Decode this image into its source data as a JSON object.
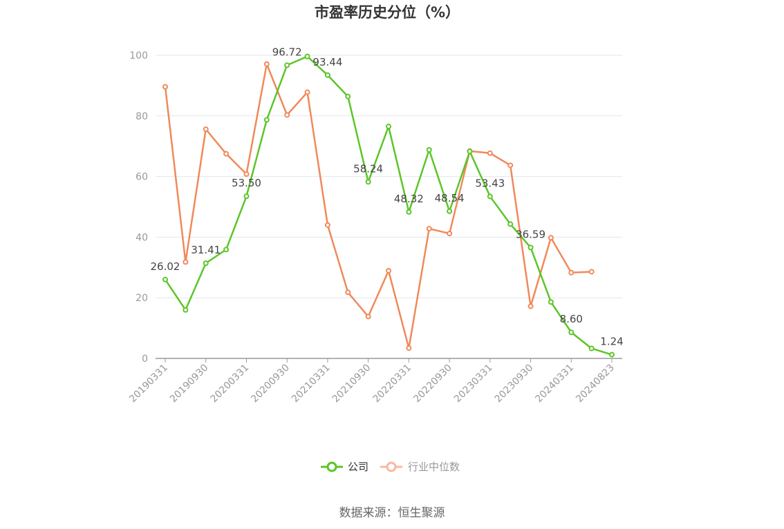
{
  "chart_data": {
    "type": "line",
    "title": "市盈率历史分位（%）",
    "ylim": [
      0,
      100
    ],
    "yticks": [
      0,
      20,
      40,
      60,
      80,
      100
    ],
    "x": [
      "20190331",
      "20190630",
      "20190930",
      "20191231",
      "20200331",
      "20200630",
      "20200930",
      "20201231",
      "20210331",
      "20210630",
      "20210930",
      "20211231",
      "20220331",
      "20220630",
      "20220930",
      "20221231",
      "20230331",
      "20230630",
      "20230930",
      "20231231",
      "20240331",
      "20240630",
      "20240823"
    ],
    "xtick_labels": [
      "20190331",
      "20190930",
      "20200331",
      "20200930",
      "20210331",
      "20210930",
      "20220331",
      "20220930",
      "20230331",
      "20230930",
      "20240331",
      "20240823"
    ],
    "grid": true,
    "legend_position": "bottom",
    "series": [
      {
        "name": "公司",
        "color": "#5cc527",
        "values": [
          26.02,
          16.0,
          31.41,
          35.9,
          53.5,
          78.7,
          96.72,
          99.6,
          93.44,
          86.4,
          58.24,
          76.5,
          48.32,
          68.8,
          48.54,
          68.3,
          53.43,
          44.3,
          36.59,
          18.6,
          8.6,
          3.3,
          1.24
        ],
        "data_labels": {
          "0": "26.02",
          "2": "31.41",
          "4": "53.50",
          "6": "96.72",
          "8": "93.44",
          "10": "58.24",
          "12": "48.32",
          "14": "48.54",
          "16": "53.43",
          "18": "36.59",
          "20": "8.60",
          "22": "1.24"
        }
      },
      {
        "name": "行业中位数",
        "color": "#f0895a",
        "values": [
          89.6,
          31.8,
          75.6,
          67.5,
          60.8,
          97.1,
          80.3,
          87.8,
          44.0,
          21.8,
          13.8,
          28.9,
          3.4,
          42.8,
          41.2,
          68.4,
          67.7,
          63.7,
          17.2,
          39.8,
          28.3,
          28.6,
          null
        ]
      }
    ]
  },
  "legend": {
    "company_label": "公司",
    "industry_label": "行业中位数"
  },
  "source_text": "数据来源：恒生聚源"
}
